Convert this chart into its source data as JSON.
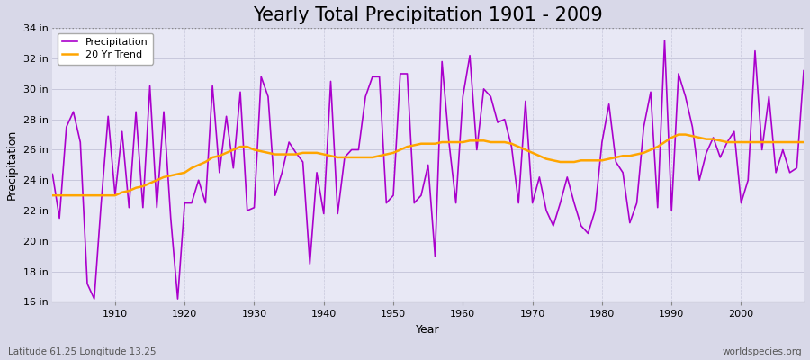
{
  "title": "Yearly Total Precipitation 1901 - 2009",
  "ylabel": "Precipitation",
  "xlabel": "Year",
  "subtitle_left": "Latitude 61.25 Longitude 13.25",
  "subtitle_right": "worldspecies.org",
  "ylim": [
    16,
    34
  ],
  "yticks": [
    16,
    18,
    20,
    22,
    24,
    26,
    28,
    30,
    32,
    34
  ],
  "ytick_labels": [
    "16 in",
    "18 in",
    "20 in",
    "22 in",
    "24 in",
    "26 in",
    "28 in",
    "30 in",
    "32 in",
    "34 in"
  ],
  "xlim": [
    1901,
    2009
  ],
  "xticks": [
    1910,
    1920,
    1930,
    1940,
    1950,
    1960,
    1970,
    1980,
    1990,
    2000
  ],
  "precip_color": "#AA00CC",
  "trend_color": "#FFA500",
  "fig_bg_color": "#D8D8E8",
  "plot_bg_color": "#E8E8F5",
  "grid_color": "#C8C8DC",
  "title_fontsize": 15,
  "years": [
    1901,
    1902,
    1903,
    1904,
    1905,
    1906,
    1907,
    1908,
    1909,
    1910,
    1911,
    1912,
    1913,
    1914,
    1915,
    1916,
    1917,
    1918,
    1919,
    1920,
    1921,
    1922,
    1923,
    1924,
    1925,
    1926,
    1927,
    1928,
    1929,
    1930,
    1931,
    1932,
    1933,
    1934,
    1935,
    1936,
    1937,
    1938,
    1939,
    1940,
    1941,
    1942,
    1943,
    1944,
    1945,
    1946,
    1947,
    1948,
    1949,
    1950,
    1951,
    1952,
    1953,
    1954,
    1955,
    1956,
    1957,
    1958,
    1959,
    1960,
    1961,
    1962,
    1963,
    1964,
    1965,
    1966,
    1967,
    1968,
    1969,
    1970,
    1971,
    1972,
    1973,
    1974,
    1975,
    1976,
    1977,
    1978,
    1979,
    1980,
    1981,
    1982,
    1983,
    1984,
    1985,
    1986,
    1987,
    1988,
    1989,
    1990,
    1991,
    1992,
    1993,
    1994,
    1995,
    1996,
    1997,
    1998,
    1999,
    2000,
    2001,
    2002,
    2003,
    2004,
    2005,
    2006,
    2007,
    2008,
    2009
  ],
  "precip": [
    24.4,
    21.5,
    27.5,
    28.5,
    26.5,
    17.2,
    16.2,
    22.5,
    28.2,
    23.0,
    27.2,
    22.2,
    28.5,
    22.2,
    30.2,
    22.2,
    28.5,
    21.5,
    16.2,
    22.5,
    22.5,
    24.0,
    22.5,
    30.2,
    24.5,
    28.2,
    24.8,
    29.8,
    22.0,
    22.2,
    30.8,
    29.5,
    23.0,
    24.5,
    26.5,
    25.8,
    25.2,
    18.5,
    24.5,
    21.8,
    30.5,
    21.8,
    25.5,
    26.0,
    26.0,
    29.5,
    30.8,
    30.8,
    22.5,
    23.0,
    31.0,
    31.0,
    22.5,
    23.0,
    25.0,
    19.0,
    31.8,
    26.5,
    22.5,
    29.5,
    32.2,
    26.0,
    30.0,
    29.5,
    27.8,
    28.0,
    26.2,
    22.5,
    29.2,
    22.5,
    24.2,
    22.0,
    21.0,
    22.5,
    24.2,
    22.5,
    21.0,
    20.5,
    22.0,
    26.5,
    29.0,
    25.2,
    24.5,
    21.2,
    22.5,
    27.5,
    29.8,
    22.2,
    33.2,
    22.0,
    31.0,
    29.5,
    27.5,
    24.0,
    25.8,
    26.8,
    25.5,
    26.5,
    27.2,
    22.5,
    24.0,
    32.5,
    26.0,
    29.5,
    24.5,
    26.0,
    24.5,
    24.8,
    31.2
  ],
  "trend": [
    23.0,
    23.0,
    23.0,
    23.0,
    23.0,
    23.0,
    23.0,
    23.0,
    23.0,
    23.0,
    23.2,
    23.3,
    23.5,
    23.6,
    23.8,
    24.0,
    24.2,
    24.3,
    24.4,
    24.5,
    24.8,
    25.0,
    25.2,
    25.5,
    25.6,
    25.8,
    26.0,
    26.2,
    26.2,
    26.0,
    25.9,
    25.8,
    25.7,
    25.7,
    25.7,
    25.7,
    25.8,
    25.8,
    25.8,
    25.7,
    25.6,
    25.5,
    25.5,
    25.5,
    25.5,
    25.5,
    25.5,
    25.6,
    25.7,
    25.8,
    26.0,
    26.2,
    26.3,
    26.4,
    26.4,
    26.4,
    26.5,
    26.5,
    26.5,
    26.5,
    26.6,
    26.6,
    26.6,
    26.5,
    26.5,
    26.5,
    26.4,
    26.2,
    26.0,
    25.8,
    25.6,
    25.4,
    25.3,
    25.2,
    25.2,
    25.2,
    25.3,
    25.3,
    25.3,
    25.3,
    25.4,
    25.5,
    25.6,
    25.6,
    25.7,
    25.8,
    26.0,
    26.2,
    26.5,
    26.8,
    27.0,
    27.0,
    26.9,
    26.8,
    26.7,
    26.7,
    26.6,
    26.5,
    26.5,
    26.5,
    26.5,
    26.5,
    26.5,
    26.5,
    26.5,
    26.5,
    26.5,
    26.5,
    26.5
  ]
}
